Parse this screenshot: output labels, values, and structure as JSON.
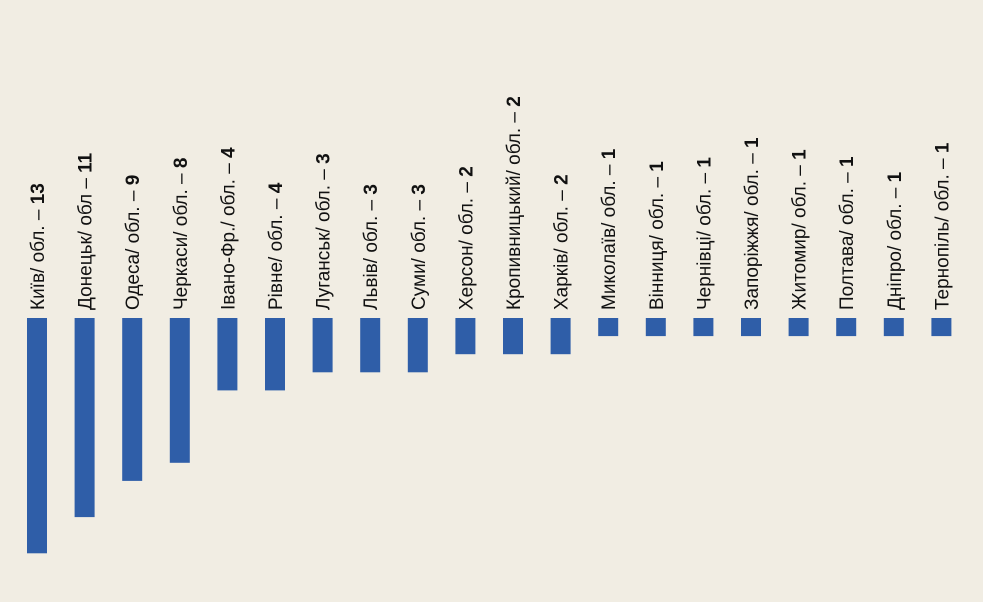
{
  "colors": {
    "background": "#f1ede3",
    "bar": "#2f5ea8",
    "text": "#111111"
  },
  "chart_data": {
    "type": "bar",
    "orientation": "vertical-downward",
    "categories": [
      {
        "name": "Київ/ обл. – ",
        "value_label": "13"
      },
      {
        "name": "Донецьк/ обл – ",
        "value_label": "11"
      },
      {
        "name": "Одеса/ обл. – ",
        "value_label": "9"
      },
      {
        "name": "Черкаси/ обл. – ",
        "value_label": "8"
      },
      {
        "name": "Івано-Фр./ обл. – ",
        "value_label": "4"
      },
      {
        "name": "Рівне/ обл. – ",
        "value_label": "4"
      },
      {
        "name": "Луганськ/ обл. – ",
        "value_label": "3"
      },
      {
        "name": "Львів/ обл. – ",
        "value_label": "3"
      },
      {
        "name": "Суми/ обл. – ",
        "value_label": "3"
      },
      {
        "name": "Херсон/ обл. – ",
        "value_label": "2"
      },
      {
        "name": "Кропивницький/ обл. – ",
        "value_label": "2"
      },
      {
        "name": "Харків/ обл. – ",
        "value_label": "2"
      },
      {
        "name": "Миколаїв/ обл. – ",
        "value_label": "1"
      },
      {
        "name": "Вінниця/ обл. – ",
        "value_label": "1"
      },
      {
        "name": "Чернівці/ обл. – ",
        "value_label": "1"
      },
      {
        "name": "Запоріжжя/ обл. – ",
        "value_label": "1"
      },
      {
        "name": "Житомир/ обл. – ",
        "value_label": "1"
      },
      {
        "name": "Полтава/ обл. – ",
        "value_label": "1"
      },
      {
        "name": "Дніпро/ обл. – ",
        "value_label": "1"
      },
      {
        "name": "Тернопіль/ обл. – ",
        "value_label": "1"
      }
    ],
    "values": [
      13,
      11,
      9,
      8,
      4,
      4,
      3,
      3,
      3,
      2,
      2,
      2,
      1,
      1,
      1,
      1,
      1,
      1,
      1,
      1
    ],
    "title": "",
    "xlabel": "",
    "ylabel": "",
    "grid": false,
    "legend": "none"
  }
}
